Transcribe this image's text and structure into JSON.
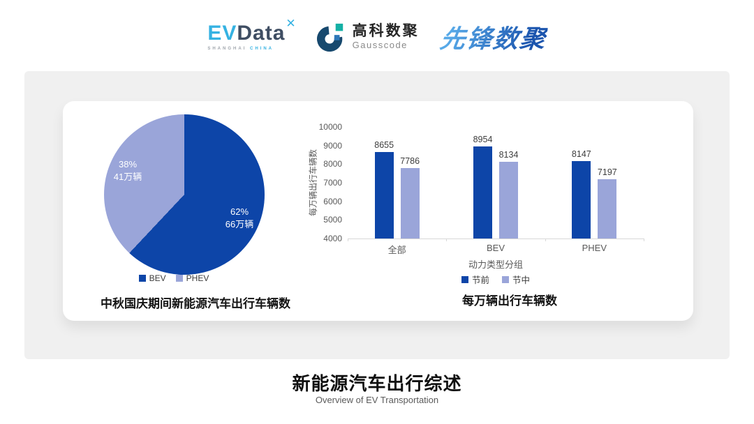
{
  "header": {
    "evdata": {
      "ev": "EV",
      "data": "Data",
      "mark": "✕",
      "sub_left": "SHANGHAI",
      "sub_right": "CHINA"
    },
    "gausscode": {
      "cn": "高科数聚",
      "en": "Gausscode"
    },
    "pioneer": {
      "text": "先锋数聚"
    }
  },
  "footer": {
    "title": "新能源汽车出行综述",
    "subtitle": "Overview of EV Transportation"
  },
  "colors": {
    "dark_blue": "#0d45a8",
    "light_purple": "#9aa5d9",
    "panel_gray": "#f0f0f0"
  },
  "chart_data": [
    {
      "type": "pie",
      "title": "中秋国庆期间新能源汽车出行车辆数",
      "start_angle_deg": 0,
      "slices": [
        {
          "label": "BEV",
          "percent": 62,
          "percent_label": "62%",
          "amount_label": "66万辆",
          "value_wan": 66,
          "color": "#0d45a8"
        },
        {
          "label": "PHEV",
          "percent": 38,
          "percent_label": "38%",
          "amount_label": "41万辆",
          "value_wan": 41,
          "color": "#9aa5d9"
        }
      ],
      "legend_position": "bottom"
    },
    {
      "type": "bar",
      "title": "每万辆出行车辆数",
      "categories": [
        "全部",
        "BEV",
        "PHEV"
      ],
      "series": [
        {
          "name": "节前",
          "color": "#0d45a8",
          "values": [
            8655,
            8954,
            8147
          ]
        },
        {
          "name": "节中",
          "color": "#9aa5d9",
          "values": [
            7786,
            8134,
            7197
          ]
        }
      ],
      "xlabel": "动力类型分组",
      "ylabel": "每万辆出行车辆数",
      "ylim": [
        4000,
        10000
      ],
      "yticks": [
        4000,
        5000,
        6000,
        7000,
        8000,
        9000,
        10000
      ],
      "grid": false,
      "legend_position": "bottom"
    }
  ]
}
